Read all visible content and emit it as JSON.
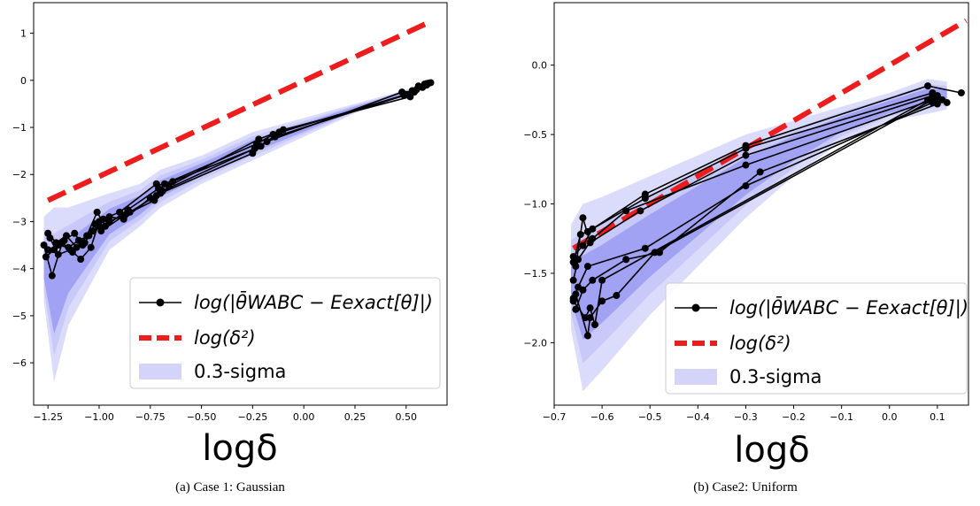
{
  "chart_data": [
    {
      "type": "line",
      "caption": "(a) Case 1: Gaussian",
      "xlabel": "logδ",
      "ylabel": "",
      "xlim": [
        -1.32,
        0.7
      ],
      "ylim": [
        -6.9,
        1.65
      ],
      "xticks": [
        -1.25,
        -1.0,
        -0.75,
        -0.5,
        -0.25,
        0.0,
        0.25,
        0.5
      ],
      "xtick_labels": [
        "−1.25",
        "−1.00",
        "−0.75",
        "−0.50",
        "−0.25",
        "0.00",
        "0.25",
        "0.50"
      ],
      "yticks": [
        1,
        0,
        -1,
        -2,
        -3,
        -4,
        -5,
        -6
      ],
      "ytick_labels": [
        "1",
        "0",
        "−1",
        "−2",
        "−3",
        "−4",
        "−5",
        "−6"
      ],
      "legend_position": "lower-right",
      "legend": [
        "log(|θ̄WABC − Eexact[θ]|)",
        "log(δ²)",
        "0.3-sigma"
      ],
      "reference_line": {
        "name": "log(δ²)",
        "x": [
          -1.25,
          0.62
        ],
        "y": [
          -2.55,
          1.25
        ]
      },
      "band": {
        "name": "0.3-sigma",
        "x": [
          -1.27,
          -1.22,
          -1.15,
          -1.05,
          -0.95,
          -0.8,
          -0.7,
          -0.5,
          -0.25,
          0.0,
          0.25,
          0.5,
          0.62
        ],
        "upper": [
          -2.9,
          -2.7,
          -2.7,
          -2.55,
          -2.4,
          -2.2,
          -1.9,
          -1.6,
          -1.1,
          -0.8,
          -0.5,
          -0.2,
          -0.05
        ],
        "lower": [
          -4.7,
          -6.4,
          -5.2,
          -4.4,
          -3.6,
          -3.1,
          -2.7,
          -2.2,
          -1.7,
          -1.2,
          -0.7,
          -0.35,
          -0.15
        ]
      },
      "series": [
        {
          "x": [
            -1.25,
            -1.2,
            -1.15,
            -1.1,
            -1.05,
            -1.0,
            -0.95,
            -0.85,
            -0.72,
            -0.68,
            -0.23,
            -0.15,
            0.5,
            0.55,
            0.62
          ],
          "y": [
            -3.6,
            -3.5,
            -3.55,
            -3.4,
            -3.3,
            -3.1,
            -3.0,
            -2.8,
            -2.45,
            -2.2,
            -1.35,
            -1.15,
            -0.3,
            -0.2,
            -0.05
          ]
        },
        {
          "x": [
            -1.26,
            -1.22,
            -1.17,
            -1.12,
            -1.08,
            -1.03,
            -0.98,
            -0.9,
            -0.72,
            -0.66,
            -0.22,
            -0.1,
            0.52,
            0.58,
            0.6
          ],
          "y": [
            -3.75,
            -3.6,
            -3.4,
            -3.25,
            -3.5,
            -3.2,
            -2.95,
            -2.8,
            -2.2,
            -2.25,
            -1.25,
            -1.05,
            -0.35,
            -0.15,
            -0.1
          ]
        },
        {
          "x": [
            -1.24,
            -1.2,
            -1.14,
            -1.09,
            -1.04,
            -1.0,
            -0.95,
            -0.88,
            -0.75,
            -0.7,
            -0.25,
            -0.18,
            0.48,
            0.54,
            0.59
          ],
          "y": [
            -3.35,
            -3.7,
            -3.6,
            -3.8,
            -3.55,
            -3.0,
            -2.9,
            -2.95,
            -2.5,
            -2.4,
            -1.55,
            -1.3,
            -0.25,
            -0.25,
            -0.08
          ]
        },
        {
          "x": [
            -1.27,
            -1.23,
            -1.18,
            -1.13,
            -1.06,
            -1.01,
            -0.97,
            -0.86,
            -0.71,
            -0.64,
            -0.21,
            -0.12,
            0.51,
            0.56,
            0.61
          ],
          "y": [
            -3.5,
            -4.15,
            -3.45,
            -3.65,
            -3.3,
            -2.8,
            -3.1,
            -2.75,
            -2.3,
            -2.15,
            -1.4,
            -1.1,
            -0.3,
            -0.12,
            -0.06
          ]
        },
        {
          "x": [
            -1.25,
            -1.21,
            -1.16,
            -1.11,
            -1.07,
            -1.02,
            -0.99,
            -0.87,
            -0.73,
            -0.69,
            -0.24,
            -0.14,
            0.49,
            0.53,
            0.6
          ],
          "y": [
            -3.25,
            -3.45,
            -3.3,
            -3.55,
            -3.45,
            -3.05,
            -3.2,
            -2.85,
            -2.55,
            -2.35,
            -1.45,
            -1.2,
            -0.32,
            -0.22,
            -0.07
          ]
        }
      ]
    },
    {
      "type": "line",
      "caption": "(b) Case2: Uniform",
      "xlabel": "logδ",
      "ylabel": "",
      "xlim": [
        -0.7,
        0.165
      ],
      "ylim": [
        -2.45,
        0.45
      ],
      "xticks": [
        -0.7,
        -0.6,
        -0.5,
        -0.4,
        -0.3,
        -0.2,
        -0.1,
        0.0,
        0.1
      ],
      "xtick_labels": [
        "−0.7",
        "−0.6",
        "−0.5",
        "−0.4",
        "−0.3",
        "−0.2",
        "−0.1",
        "0.0",
        "0.1"
      ],
      "yticks": [
        0.0,
        -0.5,
        -1.0,
        -1.5,
        -2.0
      ],
      "ytick_labels": [
        "0.0",
        "−0.5",
        "−1.0",
        "−1.5",
        "−2.0"
      ],
      "legend_position": "lower-right",
      "legend": [
        "log(|θ̄WABC − Eexact[θ]|)",
        "log(δ²)",
        "0.3-sigma"
      ],
      "reference_line": {
        "name": "log(δ²)",
        "x": [
          -0.66,
          0.16
        ],
        "y": [
          -1.32,
          0.32
        ]
      },
      "band": {
        "name": "0.3-sigma",
        "x": [
          -0.665,
          -0.64,
          -0.6,
          -0.5,
          -0.4,
          -0.3,
          -0.2,
          -0.1,
          0.0,
          0.08,
          0.12
        ],
        "upper": [
          -1.15,
          -1.0,
          -0.95,
          -0.8,
          -0.65,
          -0.5,
          -0.4,
          -0.3,
          -0.2,
          -0.1,
          -0.12
        ],
        "lower": [
          -1.9,
          -2.35,
          -2.2,
          -1.8,
          -1.45,
          -1.1,
          -0.8,
          -0.55,
          -0.4,
          -0.35,
          -0.32
        ]
      },
      "series": [
        {
          "x": [
            -0.66,
            -0.64,
            -0.62,
            -0.51,
            -0.3,
            0.08,
            0.15
          ],
          "y": [
            -1.38,
            -1.3,
            -1.18,
            -0.93,
            -0.58,
            -0.15,
            -0.2
          ]
        },
        {
          "x": [
            -0.66,
            -0.645,
            -0.63,
            -0.51,
            -0.3,
            0.09,
            0.12
          ],
          "y": [
            -1.42,
            -1.22,
            -1.2,
            -0.96,
            -0.6,
            -0.2,
            -0.27
          ]
        },
        {
          "x": [
            -0.655,
            -0.64,
            -0.625,
            -0.52,
            -0.3,
            0.09,
            0.11
          ],
          "y": [
            -1.45,
            -1.1,
            -1.28,
            -1.05,
            -0.65,
            -0.22,
            -0.25
          ]
        },
        {
          "x": [
            -0.66,
            -0.65,
            -0.62,
            -0.55,
            -0.3,
            0.09,
            0.1
          ],
          "y": [
            -1.55,
            -1.4,
            -1.25,
            -1.05,
            -0.72,
            -0.25,
            -0.22
          ]
        },
        {
          "x": [
            -0.66,
            -0.65,
            -0.63,
            -0.51,
            -0.3,
            0.09,
            0.1
          ],
          "y": [
            -1.68,
            -1.6,
            -1.45,
            -1.32,
            -0.87,
            -0.27,
            -0.23
          ]
        },
        {
          "x": [
            -0.655,
            -0.64,
            -0.62,
            -0.55,
            -0.48,
            -0.27,
            0.1
          ],
          "y": [
            -1.76,
            -1.62,
            -1.55,
            -1.4,
            -1.35,
            -0.77,
            -0.28
          ]
        },
        {
          "x": [
            -0.655,
            -0.63,
            -0.625,
            -0.6,
            -0.57,
            -0.49,
            0.09
          ],
          "y": [
            -1.65,
            -1.95,
            -1.82,
            -1.7,
            -1.66,
            -1.35,
            -0.25
          ]
        },
        {
          "x": [
            -0.66,
            -0.635,
            -0.625,
            -0.615,
            -0.6,
            0.08
          ],
          "y": [
            -1.7,
            -1.82,
            -1.75,
            -1.87,
            -1.55,
            -0.25
          ]
        }
      ]
    }
  ]
}
